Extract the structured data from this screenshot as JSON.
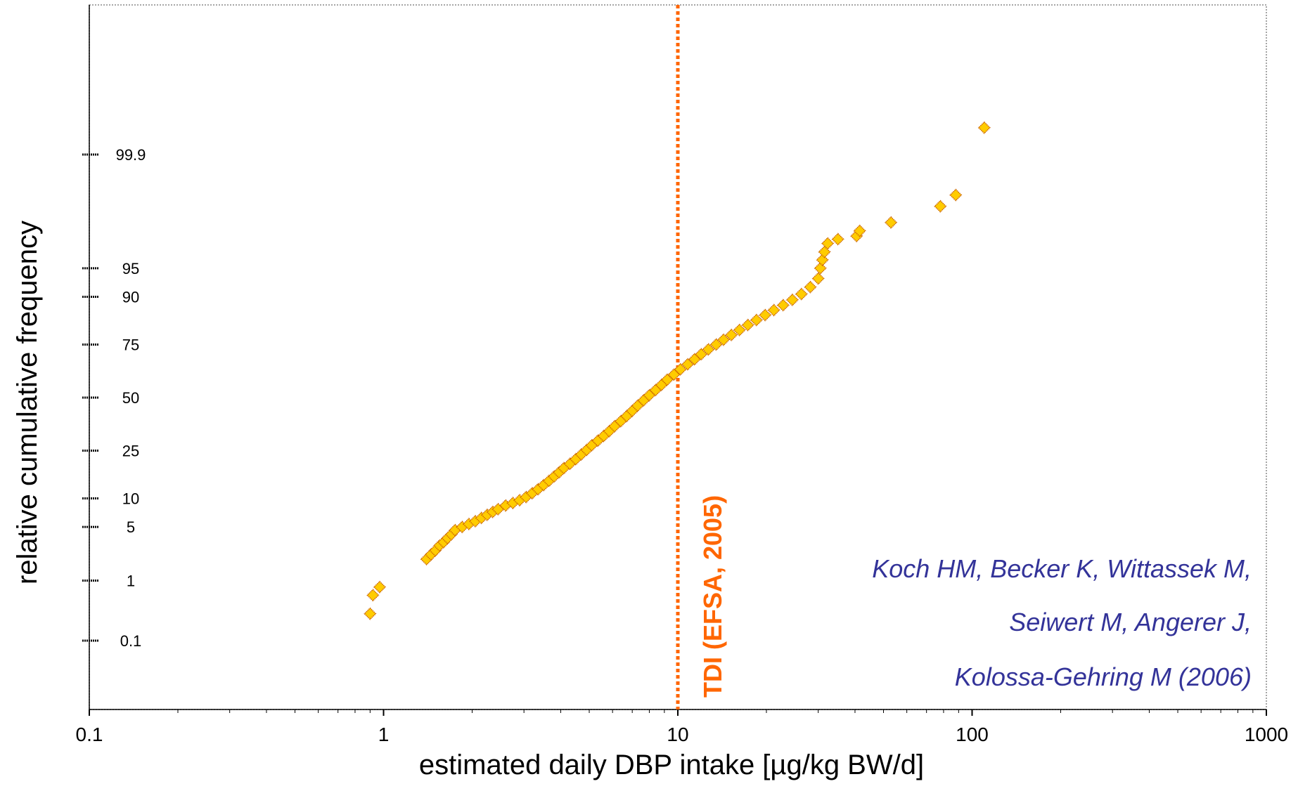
{
  "chart_data": {
    "type": "scatter",
    "title": "",
    "xlabel": "estimated daily DBP intake [µg/kg BW/d]",
    "ylabel": "relative cumulative frequency",
    "x_scale": "log",
    "y_scale": "probability",
    "xlim": [
      0.1,
      1000
    ],
    "x_ticks": [
      0.1,
      1,
      10,
      100,
      1000
    ],
    "x_tick_labels": [
      "0.1",
      "1",
      "10",
      "100",
      "1000"
    ],
    "y_ticks": [
      0.1,
      1,
      5,
      10,
      25,
      50,
      75,
      90,
      95,
      99.9
    ],
    "y_tick_labels": [
      "0.1",
      "1",
      "5",
      "10",
      "25",
      "50",
      "75",
      "90",
      "95",
      "99.9"
    ],
    "grid": false,
    "reference_line": {
      "x": 10,
      "label": "TDI (EFSA, 2005)",
      "color": "#ff6600",
      "style": "dotted"
    },
    "annotation_lines": [
      "Koch HM, Becker K, Wittassek M,",
      "Seiwert M, Angerer J,",
      "Kolossa-Gehring M  (2006)"
    ],
    "annotation_color": "#333399",
    "marker": {
      "shape": "diamond",
      "fill": "#ffcc00",
      "edge": "#cc6600"
    },
    "series": [
      {
        "points": [
          [
            0.9,
            0.3
          ],
          [
            0.92,
            0.6
          ],
          [
            0.97,
            0.8
          ],
          [
            1.4,
            2.0
          ],
          [
            1.45,
            2.3
          ],
          [
            1.5,
            2.6
          ],
          [
            1.55,
            3.0
          ],
          [
            1.6,
            3.3
          ],
          [
            1.65,
            3.7
          ],
          [
            1.7,
            4.1
          ],
          [
            1.75,
            4.6
          ],
          [
            1.85,
            5.0
          ],
          [
            1.95,
            5.4
          ],
          [
            2.05,
            5.8
          ],
          [
            2.15,
            6.3
          ],
          [
            2.25,
            6.8
          ],
          [
            2.35,
            7.3
          ],
          [
            2.45,
            7.8
          ],
          [
            2.6,
            8.5
          ],
          [
            2.75,
            9.0
          ],
          [
            2.9,
            9.6
          ],
          [
            3.05,
            10.3
          ],
          [
            3.2,
            11.2
          ],
          [
            3.35,
            12.2
          ],
          [
            3.5,
            13.3
          ],
          [
            3.65,
            14.5
          ],
          [
            3.8,
            15.8
          ],
          [
            3.95,
            17.1
          ],
          [
            4.1,
            18.5
          ],
          [
            4.3,
            20
          ],
          [
            4.5,
            21.7
          ],
          [
            4.7,
            23.5
          ],
          [
            4.9,
            25.3
          ],
          [
            5.1,
            27.2
          ],
          [
            5.35,
            29.2
          ],
          [
            5.6,
            31.3
          ],
          [
            5.85,
            33.5
          ],
          [
            6.1,
            35.8
          ],
          [
            6.4,
            38.2
          ],
          [
            6.7,
            40.7
          ],
          [
            7.0,
            43.3
          ],
          [
            7.3,
            45.9
          ],
          [
            7.65,
            48.6
          ],
          [
            8.0,
            51.2
          ],
          [
            8.4,
            53.8
          ],
          [
            8.8,
            56.4
          ],
          [
            9.2,
            59.0
          ],
          [
            9.7,
            61.5
          ],
          [
            10.2,
            64.0
          ],
          [
            10.8,
            66.4
          ],
          [
            11.4,
            68.7
          ],
          [
            12.0,
            70.9
          ],
          [
            12.7,
            73.0
          ],
          [
            13.5,
            75.0
          ],
          [
            14.3,
            76.9
          ],
          [
            15.2,
            78.7
          ],
          [
            16.2,
            80.5
          ],
          [
            17.3,
            82.2
          ],
          [
            18.5,
            83.8
          ],
          [
            19.8,
            85.3
          ],
          [
            21.2,
            86.7
          ],
          [
            22.8,
            88.0
          ],
          [
            24.5,
            89.3
          ],
          [
            26.3,
            90.6
          ],
          [
            28.2,
            92.0
          ],
          [
            30.0,
            93.5
          ],
          [
            30.5,
            95.0
          ],
          [
            31.0,
            96.0
          ],
          [
            31.5,
            96.8
          ],
          [
            32.3,
            97.5
          ],
          [
            35.0,
            97.8
          ],
          [
            40.5,
            98.0
          ],
          [
            41.5,
            98.3
          ],
          [
            53.0,
            98.7
          ],
          [
            78.0,
            99.25
          ],
          [
            88.0,
            99.5
          ],
          [
            110.0,
            99.97
          ]
        ]
      }
    ]
  }
}
